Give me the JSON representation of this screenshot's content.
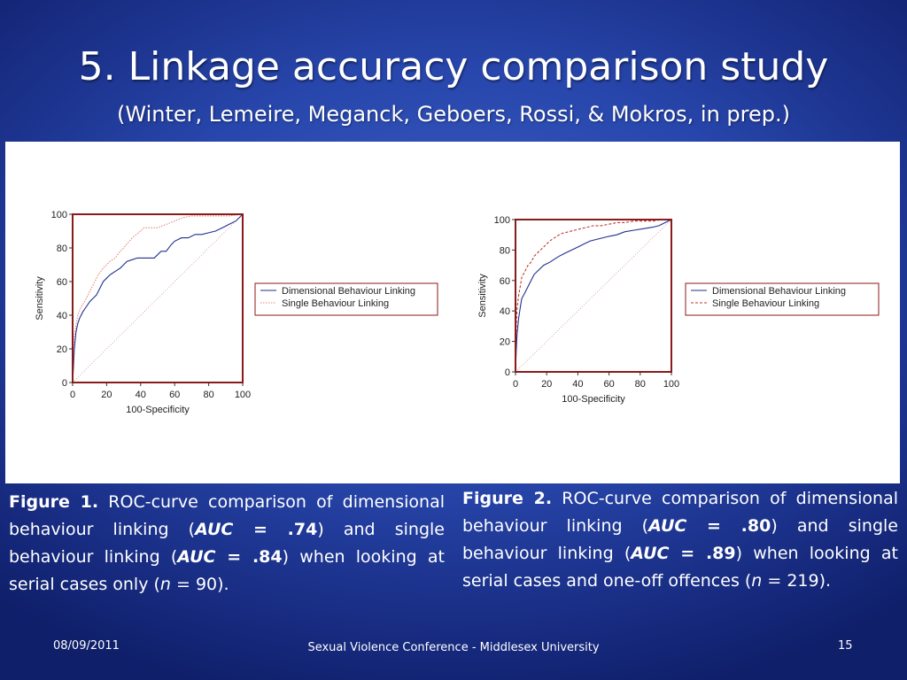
{
  "slide": {
    "title": "5. Linkage accuracy comparison study",
    "subtitle": "(Winter, Lemeire, Meganck, Geboers, Rossi, & Mokros, in prep.)"
  },
  "captions": [
    {
      "figure_label": "Figure 1.",
      "text_a": " ROC-curve comparison of dimensional behaviour linking (",
      "auc_label": "AUC",
      "auc_value": "= .74",
      "text_b": ") and single behaviour linking (",
      "auc2_value": "= .84",
      "text_c": ") when looking at serial cases only (",
      "n_label": "n",
      "n_value": " = 90)."
    },
    {
      "figure_label": "Figure 2.",
      "text_a": " ROC-curve comparison of dimensional behaviour linking (",
      "auc_label": "AUC",
      "auc_value": "= .80",
      "text_b": ") and single behaviour linking (",
      "auc2_value": "= .89",
      "text_c": ") when looking at serial cases and one-off offences (",
      "n_label": "n",
      "n_value": " = 219)."
    }
  ],
  "footer": {
    "date": "08/09/2011",
    "center": "Sexual Violence Conference - Middlesex University",
    "page": "15"
  },
  "chart_data": [
    {
      "type": "line",
      "xlabel": "100-Specificity",
      "ylabel": "Sensitivity",
      "xlim": [
        0,
        100
      ],
      "ylim": [
        0,
        100
      ],
      "xticks": [
        "0",
        "20",
        "40",
        "60",
        "80",
        "100"
      ],
      "yticks": [
        "0",
        "20",
        "40",
        "60",
        "80",
        "100"
      ],
      "legend_position": "right",
      "series": [
        {
          "name": "Dimensional Behaviour Linking",
          "color": "#1f2f8f",
          "style": "solid",
          "x": [
            0,
            0.5,
            1,
            2,
            3,
            4,
            5,
            6,
            8,
            10,
            12,
            14,
            16,
            18,
            20,
            22,
            25,
            28,
            30,
            32,
            35,
            38,
            42,
            45,
            48,
            52,
            55,
            58,
            60,
            64,
            68,
            72,
            76,
            80,
            84,
            88,
            92,
            96,
            100
          ],
          "y": [
            0,
            10,
            20,
            30,
            35,
            38,
            40,
            42,
            45,
            48,
            50,
            52,
            56,
            60,
            62,
            64,
            66,
            68,
            70,
            72,
            73,
            74,
            74,
            74,
            74,
            78,
            78,
            82,
            84,
            86,
            86,
            88,
            88,
            89,
            90,
            92,
            94,
            96,
            100
          ]
        },
        {
          "name": "Single Behaviour Linking",
          "color": "#e4867a",
          "style": "dotted",
          "x": [
            0,
            0.5,
            1,
            2,
            3,
            5,
            7,
            9,
            11,
            13,
            15,
            18,
            20,
            22,
            25,
            28,
            30,
            35,
            40,
            42,
            45,
            50,
            55,
            60,
            65,
            70,
            78,
            85,
            92,
            100
          ],
          "y": [
            0,
            20,
            28,
            34,
            40,
            45,
            48,
            52,
            56,
            60,
            64,
            68,
            70,
            72,
            74,
            78,
            80,
            86,
            90,
            92,
            92,
            92,
            94,
            96,
            98,
            99,
            99,
            99,
            99,
            100
          ]
        }
      ]
    },
    {
      "type": "line",
      "xlabel": "100-Specificity",
      "ylabel": "Sensitivity",
      "xlim": [
        0,
        100
      ],
      "ylim": [
        0,
        100
      ],
      "xticks": [
        "0",
        "20",
        "40",
        "60",
        "80",
        "100"
      ],
      "yticks": [
        "0",
        "20",
        "40",
        "60",
        "80",
        "100"
      ],
      "legend_position": "right",
      "series": [
        {
          "name": "Dimensional Behaviour Linking",
          "color": "#1f2f8f",
          "style": "solid",
          "x": [
            0,
            0.5,
            1,
            2,
            3,
            4,
            6,
            8,
            10,
            12,
            14,
            16,
            18,
            20,
            22,
            25,
            28,
            32,
            36,
            40,
            44,
            48,
            52,
            56,
            60,
            65,
            70,
            76,
            82,
            88,
            92,
            96,
            100
          ],
          "y": [
            0,
            15,
            25,
            35,
            42,
            48,
            52,
            56,
            60,
            64,
            66,
            68,
            70,
            71,
            72,
            74,
            76,
            78,
            80,
            82,
            84,
            86,
            87,
            88,
            89,
            90,
            92,
            93,
            94,
            95,
            96,
            98,
            100
          ]
        },
        {
          "name": "Single Behaviour Linking",
          "color": "#c0392b",
          "style": "dashed",
          "x": [
            0,
            0.5,
            1,
            2,
            3,
            4,
            6,
            8,
            10,
            12,
            14,
            16,
            18,
            20,
            22,
            25,
            28,
            30,
            34,
            38,
            42,
            46,
            50,
            55,
            60,
            65,
            70,
            76,
            82,
            88,
            94,
            100
          ],
          "y": [
            0,
            30,
            42,
            50,
            56,
            62,
            66,
            70,
            72,
            76,
            78,
            80,
            82,
            84,
            86,
            88,
            90,
            91,
            92,
            93,
            94,
            95,
            96,
            96,
            97,
            98,
            98,
            99,
            99,
            99,
            100,
            100
          ]
        }
      ]
    }
  ]
}
